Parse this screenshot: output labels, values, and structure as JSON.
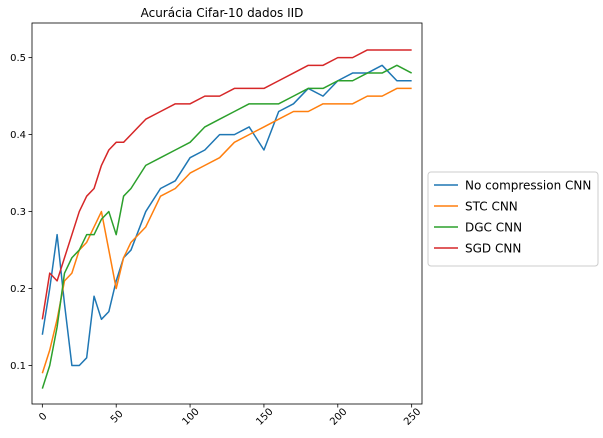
{
  "chart_data": {
    "type": "line",
    "title": "Acurácia Cifar-10 dados IID",
    "xlabel": "",
    "ylabel": "",
    "xlim": [
      -7,
      257
    ],
    "ylim": [
      0.05,
      0.545
    ],
    "xticks": [
      0,
      50,
      100,
      150,
      200,
      250
    ],
    "yticks": [
      0.1,
      0.2,
      0.3,
      0.4,
      0.5
    ],
    "legend_position": "right-outside",
    "series": [
      {
        "name": "No compression CNN",
        "color": "#1f77b4",
        "x": [
          0,
          5,
          10,
          15,
          20,
          25,
          30,
          35,
          40,
          45,
          50,
          55,
          60,
          70,
          80,
          90,
          100,
          110,
          120,
          130,
          140,
          150,
          160,
          170,
          180,
          190,
          200,
          210,
          220,
          230,
          240,
          250
        ],
        "y": [
          0.14,
          0.2,
          0.27,
          0.18,
          0.1,
          0.1,
          0.11,
          0.19,
          0.16,
          0.17,
          0.21,
          0.24,
          0.25,
          0.3,
          0.33,
          0.34,
          0.37,
          0.38,
          0.4,
          0.4,
          0.41,
          0.38,
          0.43,
          0.44,
          0.46,
          0.45,
          0.47,
          0.48,
          0.48,
          0.49,
          0.47,
          0.47
        ]
      },
      {
        "name": "STC CNN",
        "color": "#ff7f0e",
        "x": [
          0,
          5,
          10,
          15,
          20,
          25,
          30,
          35,
          40,
          45,
          50,
          55,
          60,
          70,
          80,
          90,
          100,
          110,
          120,
          130,
          140,
          150,
          160,
          170,
          180,
          190,
          200,
          210,
          220,
          230,
          240,
          250
        ],
        "y": [
          0.09,
          0.12,
          0.16,
          0.21,
          0.22,
          0.25,
          0.26,
          0.28,
          0.3,
          0.25,
          0.2,
          0.24,
          0.26,
          0.28,
          0.32,
          0.33,
          0.35,
          0.36,
          0.37,
          0.39,
          0.4,
          0.41,
          0.42,
          0.43,
          0.43,
          0.44,
          0.44,
          0.44,
          0.45,
          0.45,
          0.46,
          0.46
        ]
      },
      {
        "name": "DGC CNN",
        "color": "#2ca02c",
        "x": [
          0,
          5,
          10,
          15,
          20,
          25,
          30,
          35,
          40,
          45,
          50,
          55,
          60,
          70,
          80,
          90,
          100,
          110,
          120,
          130,
          140,
          150,
          160,
          170,
          180,
          190,
          200,
          210,
          220,
          230,
          240,
          250
        ],
        "y": [
          0.07,
          0.1,
          0.15,
          0.22,
          0.24,
          0.25,
          0.27,
          0.27,
          0.29,
          0.3,
          0.27,
          0.32,
          0.33,
          0.36,
          0.37,
          0.38,
          0.39,
          0.41,
          0.42,
          0.43,
          0.44,
          0.44,
          0.44,
          0.45,
          0.46,
          0.46,
          0.47,
          0.47,
          0.48,
          0.48,
          0.49,
          0.48
        ]
      },
      {
        "name": "SGD CNN",
        "color": "#d62728",
        "x": [
          0,
          5,
          10,
          15,
          20,
          25,
          30,
          35,
          40,
          45,
          50,
          55,
          60,
          70,
          80,
          90,
          100,
          110,
          120,
          130,
          140,
          150,
          160,
          170,
          180,
          190,
          200,
          210,
          220,
          230,
          240,
          250
        ],
        "y": [
          0.16,
          0.22,
          0.21,
          0.24,
          0.27,
          0.3,
          0.32,
          0.33,
          0.36,
          0.38,
          0.39,
          0.39,
          0.4,
          0.42,
          0.43,
          0.44,
          0.44,
          0.45,
          0.45,
          0.46,
          0.46,
          0.46,
          0.47,
          0.48,
          0.49,
          0.49,
          0.5,
          0.5,
          0.51,
          0.51,
          0.51,
          0.51
        ]
      }
    ]
  }
}
